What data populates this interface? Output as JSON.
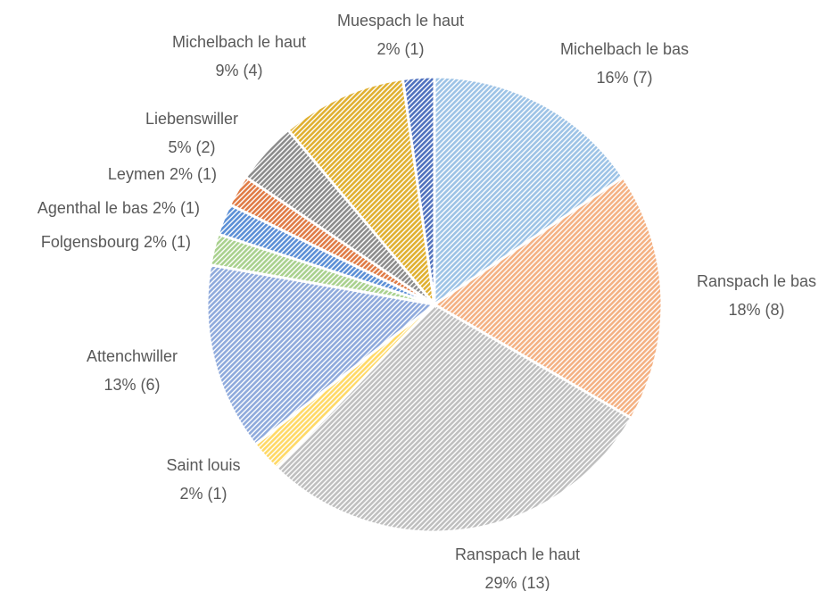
{
  "chart_data": {
    "type": "pie",
    "categories": [
      "Michelbach le bas",
      "Ranspach le bas",
      "Ranspach le haut",
      "Saint louis",
      "Attenchwiller",
      "Folgensbourg",
      "Agenthal le bas",
      "Leymen",
      "Liebenswiller",
      "Michelbach le haut",
      "Muespach le haut"
    ],
    "values": [
      7,
      8,
      13,
      1,
      6,
      1,
      1,
      1,
      2,
      4,
      1
    ],
    "value_labels": [
      "16% (7)",
      "18% (8)",
      "29% (13)",
      "2% (1)",
      "13% (6)",
      "2% (1)",
      "2% (1)",
      "2% (1)",
      "5% (2)",
      "9% (4)",
      "2% (1)"
    ],
    "colors": [
      "#9dc3e6",
      "#f4b183",
      "#bfbfbf",
      "#ffd966",
      "#8faadc",
      "#a9d18e",
      "#5b8fd6",
      "#e07b45",
      "#8c8c8c",
      "#e0b030",
      "#4f71be"
    ]
  }
}
